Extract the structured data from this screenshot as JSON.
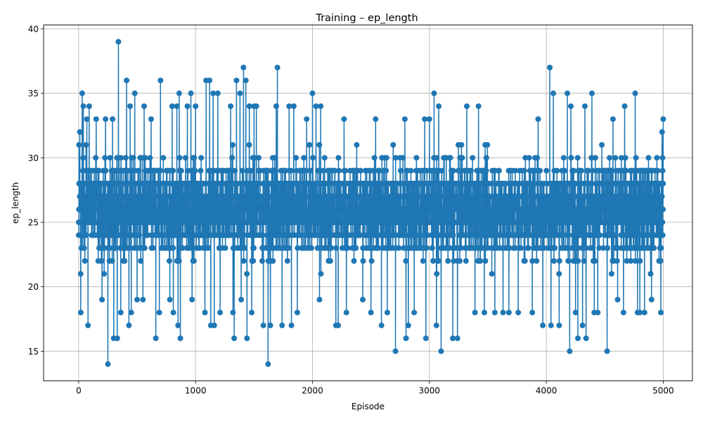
{
  "chart_data": {
    "type": "line",
    "title": "Training – ep_length",
    "xlabel": "Episode",
    "ylabel": "ep_length",
    "xlim": [
      -300,
      5250
    ],
    "ylim": [
      12.7,
      40.3
    ],
    "xticks": [
      0,
      1000,
      2000,
      3000,
      4000,
      5000
    ],
    "yticks": [
      15,
      20,
      25,
      30,
      35,
      40
    ],
    "grid": true,
    "marker": "circle",
    "color": "#1f77b4",
    "n_points": 5001,
    "extremes": [
      {
        "x": 0,
        "y": 24
      },
      {
        "x": 3,
        "y": 31
      },
      {
        "x": 6,
        "y": 28
      },
      {
        "x": 10,
        "y": 32
      },
      {
        "x": 18,
        "y": 18
      },
      {
        "x": 30,
        "y": 35
      },
      {
        "x": 40,
        "y": 34
      },
      {
        "x": 70,
        "y": 33
      },
      {
        "x": 80,
        "y": 17
      },
      {
        "x": 90,
        "y": 34
      },
      {
        "x": 150,
        "y": 33
      },
      {
        "x": 200,
        "y": 19
      },
      {
        "x": 230,
        "y": 33
      },
      {
        "x": 250,
        "y": 14
      },
      {
        "x": 290,
        "y": 33
      },
      {
        "x": 300,
        "y": 16
      },
      {
        "x": 330,
        "y": 16
      },
      {
        "x": 340,
        "y": 39
      },
      {
        "x": 360,
        "y": 18
      },
      {
        "x": 410,
        "y": 36
      },
      {
        "x": 430,
        "y": 17
      },
      {
        "x": 440,
        "y": 34
      },
      {
        "x": 450,
        "y": 18
      },
      {
        "x": 480,
        "y": 35
      },
      {
        "x": 500,
        "y": 19
      },
      {
        "x": 550,
        "y": 19
      },
      {
        "x": 560,
        "y": 34
      },
      {
        "x": 620,
        "y": 33
      },
      {
        "x": 660,
        "y": 16
      },
      {
        "x": 690,
        "y": 18
      },
      {
        "x": 700,
        "y": 36
      },
      {
        "x": 780,
        "y": 19
      },
      {
        "x": 800,
        "y": 34
      },
      {
        "x": 810,
        "y": 18
      },
      {
        "x": 840,
        "y": 34
      },
      {
        "x": 850,
        "y": 17
      },
      {
        "x": 860,
        "y": 35
      },
      {
        "x": 870,
        "y": 16
      },
      {
        "x": 930,
        "y": 34
      },
      {
        "x": 960,
        "y": 35
      },
      {
        "x": 970,
        "y": 19
      },
      {
        "x": 1000,
        "y": 34
      },
      {
        "x": 1080,
        "y": 18
      },
      {
        "x": 1090,
        "y": 36
      },
      {
        "x": 1120,
        "y": 36
      },
      {
        "x": 1130,
        "y": 17
      },
      {
        "x": 1150,
        "y": 35
      },
      {
        "x": 1160,
        "y": 17
      },
      {
        "x": 1190,
        "y": 35
      },
      {
        "x": 1210,
        "y": 18
      },
      {
        "x": 1300,
        "y": 34
      },
      {
        "x": 1320,
        "y": 18
      },
      {
        "x": 1330,
        "y": 16
      },
      {
        "x": 1350,
        "y": 36
      },
      {
        "x": 1380,
        "y": 35
      },
      {
        "x": 1390,
        "y": 19
      },
      {
        "x": 1410,
        "y": 37
      },
      {
        "x": 1430,
        "y": 36
      },
      {
        "x": 1440,
        "y": 16
      },
      {
        "x": 1460,
        "y": 34
      },
      {
        "x": 1480,
        "y": 18
      },
      {
        "x": 1500,
        "y": 34
      },
      {
        "x": 1520,
        "y": 34
      },
      {
        "x": 1580,
        "y": 17
      },
      {
        "x": 1620,
        "y": 14
      },
      {
        "x": 1640,
        "y": 17
      },
      {
        "x": 1690,
        "y": 34
      },
      {
        "x": 1700,
        "y": 37
      },
      {
        "x": 1740,
        "y": 17
      },
      {
        "x": 1800,
        "y": 34
      },
      {
        "x": 1820,
        "y": 17
      },
      {
        "x": 1840,
        "y": 34
      },
      {
        "x": 1870,
        "y": 18
      },
      {
        "x": 1950,
        "y": 33
      },
      {
        "x": 2000,
        "y": 35
      },
      {
        "x": 2030,
        "y": 34
      },
      {
        "x": 2060,
        "y": 19
      },
      {
        "x": 2070,
        "y": 34
      },
      {
        "x": 2200,
        "y": 17
      },
      {
        "x": 2220,
        "y": 17
      },
      {
        "x": 2270,
        "y": 33
      },
      {
        "x": 2290,
        "y": 18
      },
      {
        "x": 2430,
        "y": 19
      },
      {
        "x": 2500,
        "y": 18
      },
      {
        "x": 2540,
        "y": 33
      },
      {
        "x": 2590,
        "y": 17
      },
      {
        "x": 2640,
        "y": 18
      },
      {
        "x": 2710,
        "y": 15
      },
      {
        "x": 2790,
        "y": 33
      },
      {
        "x": 2800,
        "y": 16
      },
      {
        "x": 2820,
        "y": 17
      },
      {
        "x": 2870,
        "y": 18
      },
      {
        "x": 2960,
        "y": 33
      },
      {
        "x": 2970,
        "y": 16
      },
      {
        "x": 3000,
        "y": 33
      },
      {
        "x": 3040,
        "y": 35
      },
      {
        "x": 3060,
        "y": 17
      },
      {
        "x": 3080,
        "y": 34
      },
      {
        "x": 3100,
        "y": 15
      },
      {
        "x": 3200,
        "y": 16
      },
      {
        "x": 3240,
        "y": 16
      },
      {
        "x": 3320,
        "y": 34
      },
      {
        "x": 3390,
        "y": 18
      },
      {
        "x": 3420,
        "y": 34
      },
      {
        "x": 3470,
        "y": 18
      },
      {
        "x": 3560,
        "y": 18
      },
      {
        "x": 3630,
        "y": 18
      },
      {
        "x": 3680,
        "y": 18
      },
      {
        "x": 3760,
        "y": 18
      },
      {
        "x": 3880,
        "y": 18
      },
      {
        "x": 3930,
        "y": 33
      },
      {
        "x": 3970,
        "y": 17
      },
      {
        "x": 4030,
        "y": 37
      },
      {
        "x": 4040,
        "y": 17
      },
      {
        "x": 4060,
        "y": 35
      },
      {
        "x": 4110,
        "y": 17
      },
      {
        "x": 4180,
        "y": 35
      },
      {
        "x": 4200,
        "y": 15
      },
      {
        "x": 4210,
        "y": 34
      },
      {
        "x": 4250,
        "y": 18
      },
      {
        "x": 4270,
        "y": 16
      },
      {
        "x": 4310,
        "y": 17
      },
      {
        "x": 4330,
        "y": 34
      },
      {
        "x": 4340,
        "y": 16
      },
      {
        "x": 4390,
        "y": 35
      },
      {
        "x": 4410,
        "y": 18
      },
      {
        "x": 4440,
        "y": 18
      },
      {
        "x": 4520,
        "y": 15
      },
      {
        "x": 4570,
        "y": 33
      },
      {
        "x": 4610,
        "y": 19
      },
      {
        "x": 4660,
        "y": 18
      },
      {
        "x": 4670,
        "y": 34
      },
      {
        "x": 4760,
        "y": 35
      },
      {
        "x": 4780,
        "y": 18
      },
      {
        "x": 4800,
        "y": 18
      },
      {
        "x": 4840,
        "y": 18
      },
      {
        "x": 4900,
        "y": 19
      },
      {
        "x": 4980,
        "y": 18
      },
      {
        "x": 4990,
        "y": 32
      },
      {
        "x": 5000,
        "y": 33
      }
    ]
  }
}
